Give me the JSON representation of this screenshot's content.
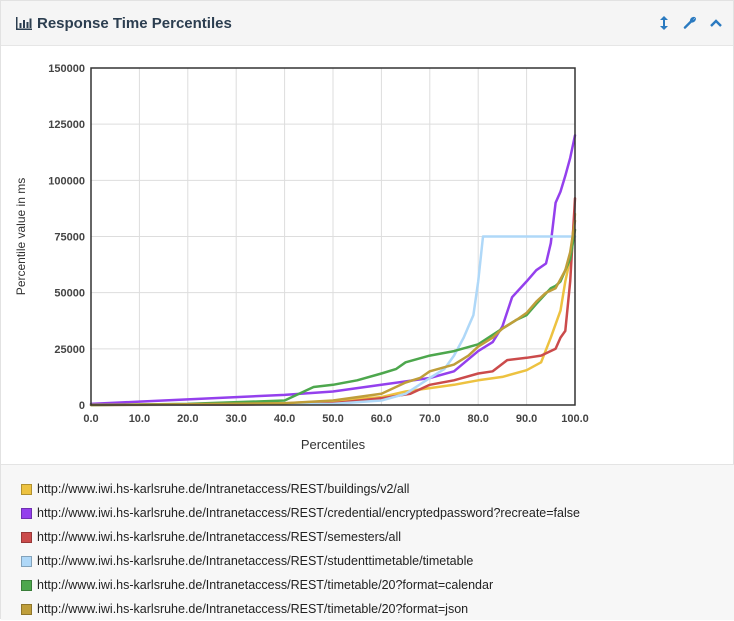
{
  "header": {
    "title": "Response Time Percentiles",
    "title_icon": "bar-chart-icon",
    "tools": [
      {
        "name": "resize-icon"
      },
      {
        "name": "wrench-icon"
      },
      {
        "name": "chevron-up-icon"
      }
    ]
  },
  "chart_data": {
    "type": "line",
    "title": "",
    "xlabel": "Percentiles",
    "ylabel": "Percentile value in ms",
    "xlim": [
      0,
      100
    ],
    "ylim": [
      0,
      150000
    ],
    "x_ticks": [
      "0.0",
      "10.0",
      "20.0",
      "30.0",
      "40.0",
      "50.0",
      "60.0",
      "70.0",
      "80.0",
      "90.0",
      "100.0"
    ],
    "y_ticks": [
      "0",
      "25000",
      "50000",
      "75000",
      "100000",
      "125000",
      "150000"
    ],
    "grid": true,
    "legend_position": "bottom",
    "series": [
      {
        "name": "http://www.iwi.hs-karlsruhe.de/Intranetaccess/REST/buildings/v2/all",
        "color": "#edc240",
        "points": [
          [
            0,
            0
          ],
          [
            20,
            300
          ],
          [
            40,
            800
          ],
          [
            50,
            1800
          ],
          [
            60,
            3500
          ],
          [
            65,
            6000
          ],
          [
            70,
            7500
          ],
          [
            75,
            9000
          ],
          [
            80,
            11000
          ],
          [
            85,
            12500
          ],
          [
            90,
            15500
          ],
          [
            93,
            19000
          ],
          [
            95,
            30000
          ],
          [
            97,
            42000
          ],
          [
            98,
            55000
          ],
          [
            99,
            65000
          ],
          [
            100,
            85000
          ]
        ]
      },
      {
        "name": "http://www.iwi.hs-karlsruhe.de/Intranetaccess/REST/credential/encryptedpassword?recreate=false",
        "color": "#9440ed",
        "points": [
          [
            0,
            500
          ],
          [
            10,
            1500
          ],
          [
            20,
            2500
          ],
          [
            30,
            3500
          ],
          [
            40,
            4500
          ],
          [
            50,
            6000
          ],
          [
            60,
            9000
          ],
          [
            70,
            12000
          ],
          [
            75,
            15000
          ],
          [
            80,
            24000
          ],
          [
            83,
            28000
          ],
          [
            85,
            35000
          ],
          [
            87,
            48000
          ],
          [
            90,
            55000
          ],
          [
            92,
            60000
          ],
          [
            94,
            63000
          ],
          [
            95,
            72000
          ],
          [
            96,
            90000
          ],
          [
            97,
            95000
          ],
          [
            98,
            102000
          ],
          [
            99,
            110000
          ],
          [
            100,
            120000
          ]
        ]
      },
      {
        "name": "http://www.iwi.hs-karlsruhe.de/Intranetaccess/REST/semesters/all",
        "color": "#cb4b4b",
        "points": [
          [
            0,
            0
          ],
          [
            30,
            200
          ],
          [
            50,
            800
          ],
          [
            60,
            3000
          ],
          [
            66,
            5000
          ],
          [
            70,
            9000
          ],
          [
            75,
            11000
          ],
          [
            80,
            14000
          ],
          [
            83,
            15000
          ],
          [
            86,
            20000
          ],
          [
            90,
            21000
          ],
          [
            93,
            22000
          ],
          [
            96,
            25000
          ],
          [
            97,
            30000
          ],
          [
            98,
            33000
          ],
          [
            99,
            55000
          ],
          [
            100,
            92000
          ]
        ]
      },
      {
        "name": "http://www.iwi.hs-karlsruhe.de/Intranetaccess/REST/studenttimetable/timetable",
        "color": "#afd8f8",
        "points": [
          [
            0,
            0
          ],
          [
            50,
            500
          ],
          [
            60,
            2000
          ],
          [
            65,
            5000
          ],
          [
            70,
            12000
          ],
          [
            73,
            16000
          ],
          [
            75,
            22000
          ],
          [
            77,
            30000
          ],
          [
            78,
            35000
          ],
          [
            79,
            40000
          ],
          [
            80,
            55000
          ],
          [
            81,
            75000
          ],
          [
            85,
            75000
          ],
          [
            90,
            75000
          ],
          [
            95,
            75000
          ],
          [
            100,
            75000
          ]
        ]
      },
      {
        "name": "http://www.iwi.hs-karlsruhe.de/Intranetaccess/REST/timetable/20?format=calendar",
        "color": "#4da74d",
        "points": [
          [
            0,
            0
          ],
          [
            20,
            500
          ],
          [
            40,
            2000
          ],
          [
            43,
            5000
          ],
          [
            46,
            8000
          ],
          [
            50,
            9000
          ],
          [
            55,
            11000
          ],
          [
            60,
            14000
          ],
          [
            63,
            16000
          ],
          [
            65,
            19000
          ],
          [
            70,
            22000
          ],
          [
            75,
            24000
          ],
          [
            80,
            27000
          ],
          [
            85,
            34000
          ],
          [
            88,
            38000
          ],
          [
            90,
            40000
          ],
          [
            92,
            45000
          ],
          [
            95,
            52000
          ],
          [
            96,
            53000
          ],
          [
            97,
            55000
          ],
          [
            98,
            60000
          ],
          [
            99,
            65000
          ],
          [
            100,
            78000
          ]
        ]
      },
      {
        "name": "http://www.iwi.hs-karlsruhe.de/Intranetaccess/REST/timetable/20?format=json",
        "color": "#bf9e3a",
        "points": [
          [
            0,
            0
          ],
          [
            20,
            300
          ],
          [
            40,
            800
          ],
          [
            50,
            2000
          ],
          [
            60,
            5000
          ],
          [
            65,
            10000
          ],
          [
            68,
            12000
          ],
          [
            70,
            15000
          ],
          [
            75,
            18000
          ],
          [
            78,
            22000
          ],
          [
            80,
            26000
          ],
          [
            83,
            30000
          ],
          [
            85,
            34000
          ],
          [
            88,
            38000
          ],
          [
            90,
            41000
          ],
          [
            92,
            46000
          ],
          [
            94,
            50000
          ],
          [
            96,
            52000
          ],
          [
            97,
            56000
          ],
          [
            98,
            60000
          ],
          [
            99,
            68000
          ],
          [
            100,
            82000
          ]
        ]
      }
    ]
  }
}
